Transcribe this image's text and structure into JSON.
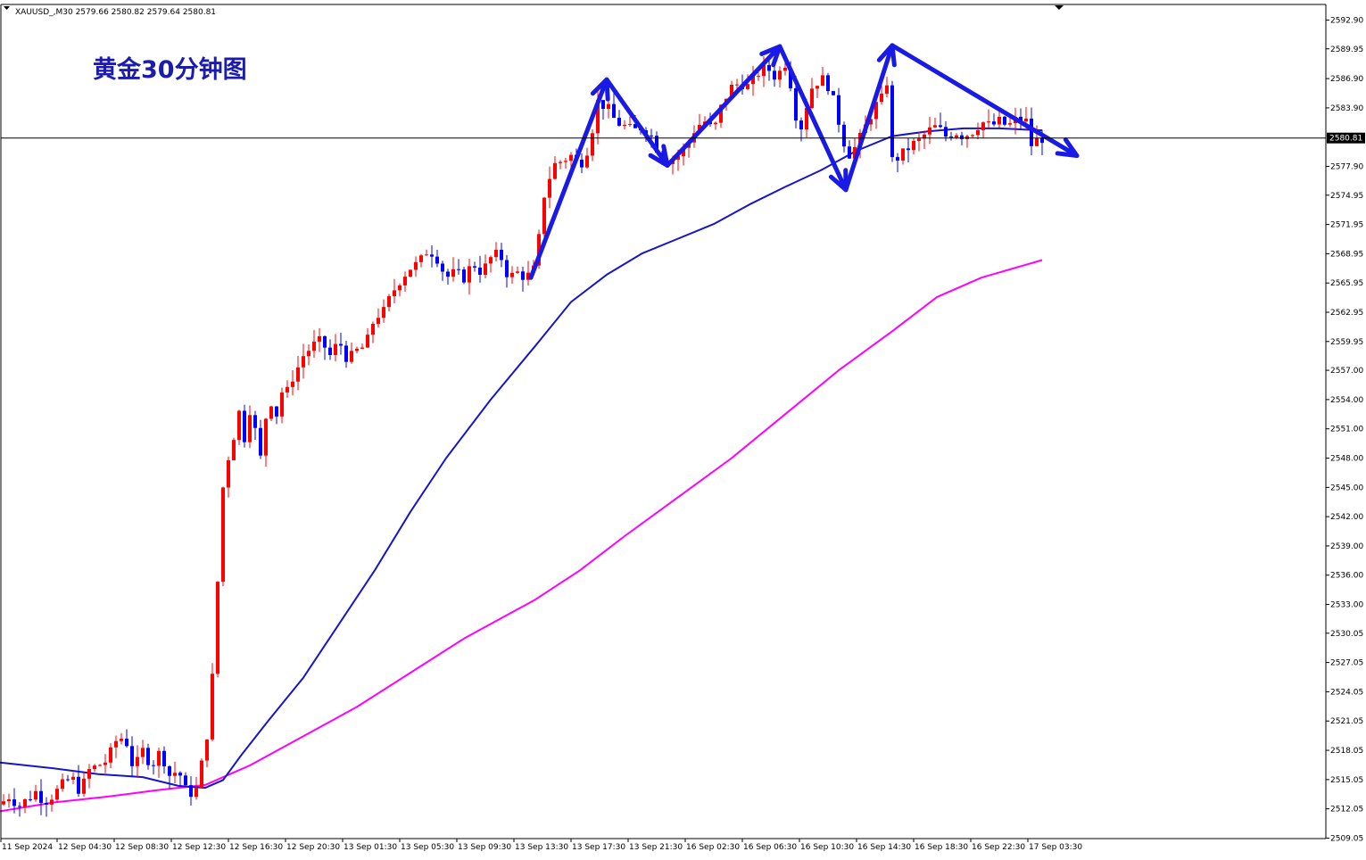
{
  "header": {
    "symbol_info": "XAUUSD_,M30  2579.66 2580.82 2579.64 2580.81",
    "dropdown_icon": "triangle-down-icon"
  },
  "title": "黄金30分钟图",
  "current_price_label": "2580.81",
  "colors": {
    "bull": "#ff0000",
    "bear": "#0000ff",
    "ma_fast": "#1515cc",
    "ma_slow": "#ff00ff",
    "arrow": "#1a1ae6",
    "title": "#1b1bb0",
    "grid_line": "#000000",
    "background": "#ffffff"
  },
  "chart_data": {
    "type": "line",
    "symbol": "XAUUSD_",
    "timeframe": "M30",
    "ylim": [
      2509.0,
      2594.5
    ],
    "y_ticks": [
      "2592.90",
      "2589.95",
      "2586.90",
      "2583.90",
      "2580.81",
      "2577.90",
      "2574.95",
      "2571.95",
      "2568.95",
      "2565.95",
      "2562.95",
      "2559.95",
      "2557.00",
      "2554.00",
      "2551.00",
      "2548.00",
      "2545.00",
      "2542.00",
      "2539.00",
      "2536.00",
      "2533.00",
      "2530.05",
      "2527.05",
      "2524.05",
      "2521.05",
      "2518.05",
      "2515.05",
      "2512.05",
      "2509.05"
    ],
    "x_ticks": [
      "11 Sep 2024",
      "12 Sep 04:30",
      "12 Sep 08:30",
      "12 Sep 12:30",
      "12 Sep 16:30",
      "12 Sep 20:30",
      "13 Sep 01:30",
      "13 Sep 05:30",
      "13 Sep 09:30",
      "13 Sep 13:30",
      "13 Sep 17:30",
      "13 Sep 21:30",
      "16 Sep 02:30",
      "16 Sep 06:30",
      "16 Sep 10:30",
      "16 Sep 14:30",
      "16 Sep 18:30",
      "16 Sep 22:30",
      "17 Sep 03:30"
    ],
    "close_points": [
      [
        0,
        2512.5
      ],
      [
        12,
        2513.5
      ],
      [
        20,
        2512.2
      ],
      [
        30,
        2513.0
      ],
      [
        40,
        2513.8
      ],
      [
        50,
        2512.8
      ],
      [
        60,
        2513.5
      ],
      [
        70,
        2514.5
      ],
      [
        80,
        2515.3
      ],
      [
        90,
        2513.8
      ],
      [
        100,
        2516.0
      ],
      [
        110,
        2516.5
      ],
      [
        120,
        2517.0
      ],
      [
        130,
        2519.0
      ],
      [
        140,
        2519.5
      ],
      [
        150,
        2516.0
      ],
      [
        160,
        2518.0
      ],
      [
        170,
        2516.5
      ],
      [
        180,
        2518.0
      ],
      [
        190,
        2515.5
      ],
      [
        200,
        2516.0
      ],
      [
        210,
        2513.5
      ],
      [
        220,
        2514.0
      ],
      [
        225,
        2516.0
      ],
      [
        230,
        2519.0
      ],
      [
        236,
        2521.0
      ],
      [
        240,
        2530.0
      ],
      [
        246,
        2538.0
      ],
      [
        250,
        2545.0
      ],
      [
        255,
        2548.0
      ],
      [
        260,
        2548.5
      ],
      [
        265,
        2553.0
      ],
      [
        270,
        2552.5
      ],
      [
        275,
        2549.5
      ],
      [
        280,
        2553.0
      ],
      [
        285,
        2552.0
      ],
      [
        290,
        2546.0
      ],
      [
        295,
        2551.0
      ],
      [
        300,
        2553.0
      ],
      [
        305,
        2554.0
      ],
      [
        310,
        2552.5
      ],
      [
        315,
        2555.0
      ],
      [
        320,
        2554.0
      ],
      [
        325,
        2556.0
      ],
      [
        330,
        2556.5
      ],
      [
        340,
        2558.5
      ],
      [
        350,
        2559.5
      ],
      [
        360,
        2560.0
      ],
      [
        370,
        2558.5
      ],
      [
        380,
        2560.0
      ],
      [
        390,
        2558.0
      ],
      [
        400,
        2559.0
      ],
      [
        410,
        2559.5
      ],
      [
        420,
        2562.5
      ],
      [
        430,
        2563.0
      ],
      [
        440,
        2565.0
      ],
      [
        450,
        2566.5
      ],
      [
        460,
        2567.5
      ],
      [
        470,
        2568.0
      ],
      [
        480,
        2569.5
      ],
      [
        490,
        2568.5
      ],
      [
        500,
        2566.5
      ],
      [
        510,
        2567.0
      ],
      [
        520,
        2566.5
      ],
      [
        530,
        2568.0
      ],
      [
        540,
        2567.0
      ],
      [
        550,
        2568.5
      ],
      [
        560,
        2569.0
      ],
      [
        570,
        2566.5
      ],
      [
        580,
        2567.0
      ],
      [
        590,
        2566.5
      ],
      [
        600,
        2567.5
      ],
      [
        610,
        2575.0
      ],
      [
        620,
        2578.0
      ],
      [
        630,
        2578.5
      ],
      [
        640,
        2579.0
      ],
      [
        650,
        2578.0
      ],
      [
        660,
        2580.0
      ],
      [
        670,
        2584.5
      ],
      [
        680,
        2584.0
      ],
      [
        690,
        2582.5
      ],
      [
        700,
        2582.0
      ],
      [
        710,
        2581.5
      ],
      [
        720,
        2582.0
      ],
      [
        730,
        2581.0
      ],
      [
        740,
        2579.0
      ],
      [
        750,
        2578.5
      ],
      [
        760,
        2579.0
      ],
      [
        770,
        2580.0
      ],
      [
        780,
        2582.0
      ],
      [
        790,
        2582.5
      ],
      [
        800,
        2581.5
      ],
      [
        810,
        2584.5
      ],
      [
        820,
        2586.0
      ],
      [
        830,
        2586.5
      ],
      [
        840,
        2586.0
      ],
      [
        850,
        2587.5
      ],
      [
        860,
        2588.0
      ],
      [
        870,
        2587.0
      ],
      [
        880,
        2588.5
      ],
      [
        890,
        2585.0
      ],
      [
        895,
        2580.5
      ],
      [
        900,
        2583.0
      ],
      [
        910,
        2586.0
      ],
      [
        920,
        2587.0
      ],
      [
        930,
        2586.0
      ],
      [
        940,
        2582.5
      ],
      [
        950,
        2579.0
      ],
      [
        960,
        2580.0
      ],
      [
        970,
        2582.0
      ],
      [
        980,
        2584.0
      ],
      [
        990,
        2585.0
      ],
      [
        995,
        2587.0
      ],
      [
        1000,
        2578.5
      ],
      [
        1010,
        2579.0
      ],
      [
        1020,
        2580.0
      ],
      [
        1030,
        2580.5
      ],
      [
        1040,
        2581.5
      ],
      [
        1050,
        2582.0
      ],
      [
        1060,
        2581.0
      ],
      [
        1070,
        2581.5
      ],
      [
        1080,
        2581.0
      ],
      [
        1090,
        2581.5
      ],
      [
        1100,
        2582.5
      ],
      [
        1110,
        2582.0
      ],
      [
        1120,
        2582.5
      ],
      [
        1130,
        2582.0
      ],
      [
        1140,
        2582.8
      ],
      [
        1150,
        2582.5
      ],
      [
        1155,
        2580.0
      ],
      [
        1160,
        2580.5
      ],
      [
        1168,
        2580.8
      ]
    ],
    "series": [
      {
        "points": [
          [
            0,
            2516.8
          ],
          [
            60,
            2516.2
          ],
          [
            110,
            2515.6
          ],
          [
            160,
            2515.3
          ],
          [
            200,
            2514.4
          ],
          [
            230,
            2514.2
          ],
          [
            250,
            2515.0
          ],
          [
            270,
            2517.5
          ],
          [
            300,
            2521.0
          ],
          [
            340,
            2525.5
          ],
          [
            380,
            2531.0
          ],
          [
            420,
            2536.5
          ],
          [
            460,
            2542.5
          ],
          [
            500,
            2548.0
          ],
          [
            550,
            2554.0
          ],
          [
            600,
            2559.5
          ],
          [
            640,
            2564.0
          ],
          [
            680,
            2566.8
          ],
          [
            720,
            2569.0
          ],
          [
            760,
            2570.5
          ],
          [
            800,
            2572.0
          ],
          [
            840,
            2574.0
          ],
          [
            880,
            2575.8
          ],
          [
            920,
            2577.5
          ],
          [
            960,
            2579.5
          ],
          [
            1000,
            2581.0
          ],
          [
            1040,
            2581.5
          ],
          [
            1080,
            2581.8
          ],
          [
            1120,
            2581.8
          ],
          [
            1168,
            2581.6
          ]
        ]
      },
      {
        "points": [
          [
            0,
            2511.8
          ],
          [
            60,
            2512.7
          ],
          [
            120,
            2513.3
          ],
          [
            180,
            2514.0
          ],
          [
            230,
            2514.5
          ],
          [
            280,
            2516.5
          ],
          [
            340,
            2519.5
          ],
          [
            400,
            2522.5
          ],
          [
            460,
            2526.0
          ],
          [
            520,
            2529.5
          ],
          [
            600,
            2533.5
          ],
          [
            650,
            2536.5
          ],
          [
            700,
            2540.0
          ],
          [
            760,
            2544.0
          ],
          [
            820,
            2548.0
          ],
          [
            880,
            2552.5
          ],
          [
            940,
            2557.0
          ],
          [
            1000,
            2561.0
          ],
          [
            1050,
            2564.5
          ],
          [
            1100,
            2566.5
          ],
          [
            1168,
            2568.3
          ]
        ]
      }
    ],
    "annotations": {
      "arrows": [
        [
          [
            595,
            2566.5
          ],
          [
            680,
            2586.8
          ]
        ],
        [
          [
            680,
            2586.8
          ],
          [
            748,
            2578.0
          ]
        ],
        [
          [
            748,
            2578.0
          ],
          [
            874,
            2590.2
          ]
        ],
        [
          [
            874,
            2590.2
          ],
          [
            948,
            2575.5
          ]
        ],
        [
          [
            948,
            2575.5
          ],
          [
            1000,
            2590.3
          ]
        ],
        [
          [
            1000,
            2590.3
          ],
          [
            1207,
            2579.0
          ]
        ]
      ]
    },
    "current_price": 2580.81
  }
}
